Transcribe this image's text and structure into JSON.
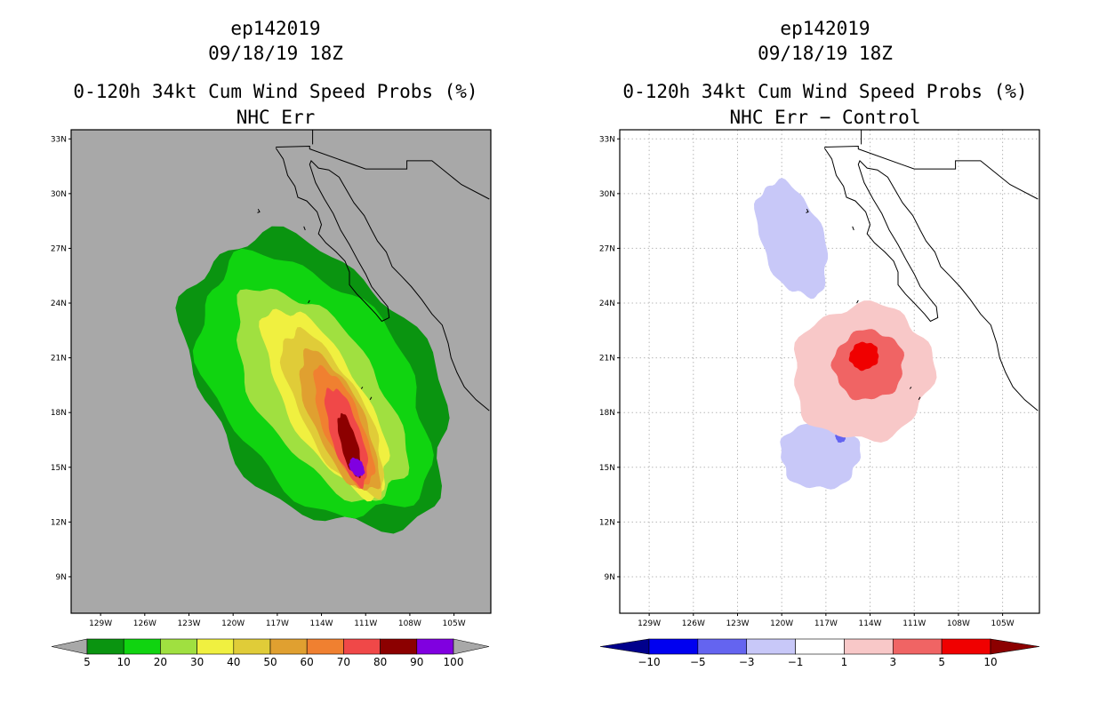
{
  "panels": [
    {
      "storm_id": "ep142019",
      "datetime": "09/18/19 18Z",
      "product": "0-120h 34kt Cum Wind Speed Probs (%)",
      "subtitle": "NHC Err"
    },
    {
      "storm_id": "ep142019",
      "datetime": "09/18/19 18Z",
      "product": "0-120h 34kt Cum Wind Speed Probs (%)",
      "subtitle": "NHC Err − Control"
    }
  ],
  "colors": {
    "background_left": "#a8a8a8",
    "coast": "#000000",
    "prob_fills": [
      "#0a9410",
      "#10d410",
      "#a0e040",
      "#f0f040",
      "#e0cc38",
      "#e0a030",
      "#f08030",
      "#f04848",
      "#8c0000",
      "#8000e0"
    ],
    "diff_fills": [
      "#00008c",
      "#0000f0",
      "#6464f0",
      "#c8c8f8",
      "#ffffff",
      "#f8c8c8",
      "#f06464",
      "#f00000",
      "#8c0000"
    ]
  },
  "chart_data": [
    {
      "type": "heatmap",
      "title": "0-120h 34kt Cum Wind Speed Probs (%) NHC Err",
      "xlabel": "",
      "ylabel": "",
      "x_ticks": [
        "129W",
        "126W",
        "123W",
        "120W",
        "117W",
        "114W",
        "111W",
        "108W",
        "105W"
      ],
      "y_ticks": [
        "33N",
        "30N",
        "27N",
        "24N",
        "21N",
        "18N",
        "15N",
        "12N",
        "9N"
      ],
      "xlim": [
        -131,
        -102.5
      ],
      "ylim": [
        7,
        33.5
      ],
      "grid": false,
      "colorbar": {
        "labels": [
          "5",
          "10",
          "20",
          "30",
          "40",
          "50",
          "60",
          "70",
          "80",
          "90",
          "100"
        ],
        "levels": [
          5,
          10,
          20,
          30,
          40,
          50,
          60,
          70,
          80,
          90,
          100
        ],
        "extend": "both"
      },
      "contours": [
        {
          "level": 5,
          "center": [
            -114.3,
            19.6
          ],
          "semi_axes_deg": [
            7.4,
            9.0
          ],
          "rotation_deg": -37
        },
        {
          "level": 10,
          "center": [
            -114.5,
            19.4
          ],
          "semi_axes_deg": [
            6.2,
            8.1
          ],
          "rotation_deg": -37
        },
        {
          "level": 20,
          "center": [
            -114.1,
            19.0
          ],
          "semi_axes_deg": [
            4.0,
            6.7
          ],
          "rotation_deg": -35
        },
        {
          "level": 30,
          "center": [
            -113.7,
            18.6
          ],
          "semi_axes_deg": [
            2.6,
            5.8
          ],
          "rotation_deg": -30
        },
        {
          "level": 40,
          "center": [
            -113.2,
            18.0
          ],
          "semi_axes_deg": [
            2.1,
            5.0
          ],
          "rotation_deg": -28
        },
        {
          "level": 50,
          "center": [
            -112.8,
            17.5
          ],
          "semi_axes_deg": [
            1.7,
            4.2
          ],
          "rotation_deg": -25
        },
        {
          "level": 60,
          "center": [
            -112.5,
            17.2
          ],
          "semi_axes_deg": [
            1.3,
            3.5
          ],
          "rotation_deg": -22
        },
        {
          "level": 70,
          "center": [
            -112.3,
            16.7
          ],
          "semi_axes_deg": [
            1.0,
            2.8
          ],
          "rotation_deg": -18
        },
        {
          "level": 80,
          "center": [
            -112.1,
            16.2
          ],
          "semi_axes_deg": [
            0.55,
            1.8
          ],
          "rotation_deg": -15
        },
        {
          "level": 90,
          "center": [
            -111.6,
            15.0
          ],
          "semi_axes_deg": [
            0.45,
            0.55
          ],
          "rotation_deg": -30
        }
      ]
    },
    {
      "type": "heatmap",
      "title": "0-120h 34kt Cum Wind Speed Probs (%) NHC Err − Control",
      "xlabel": "",
      "ylabel": "",
      "x_ticks": [
        "129W",
        "126W",
        "123W",
        "120W",
        "117W",
        "114W",
        "111W",
        "108W",
        "105W"
      ],
      "y_ticks": [
        "33N",
        "30N",
        "27N",
        "24N",
        "21N",
        "18N",
        "15N",
        "12N",
        "9N"
      ],
      "xlim": [
        -131,
        -102.5
      ],
      "ylim": [
        7,
        33.5
      ],
      "grid": true,
      "colorbar": {
        "labels": [
          "−10",
          "−5",
          "−3",
          "−1",
          "1",
          "3",
          "5",
          "10"
        ],
        "levels": [
          -10,
          -5,
          -3,
          -1,
          1,
          3,
          5,
          10
        ],
        "extend": "both"
      },
      "contours": [
        {
          "level": -1,
          "center": [
            -119.3,
            27.5
          ],
          "semi_axes_deg": [
            2.1,
            3.3
          ],
          "rotation_deg": -20
        },
        {
          "level": -1,
          "center": [
            -117.4,
            15.7
          ],
          "semi_axes_deg": [
            2.7,
            1.9
          ],
          "rotation_deg": 0
        },
        {
          "level": -3,
          "center": [
            -116.0,
            16.7
          ],
          "semi_axes_deg": [
            0.35,
            0.35
          ],
          "rotation_deg": 0
        },
        {
          "level": 1,
          "center": [
            -114.5,
            20.2
          ],
          "semi_axes_deg": [
            4.8,
            3.7
          ],
          "rotation_deg": -25
        },
        {
          "level": 3,
          "center": [
            -114.1,
            20.6
          ],
          "semi_axes_deg": [
            2.4,
            1.9
          ],
          "rotation_deg": -30
        },
        {
          "level": 5,
          "center": [
            -114.4,
            21.1
          ],
          "semi_axes_deg": [
            1.0,
            0.75
          ],
          "rotation_deg": -25
        }
      ]
    }
  ]
}
